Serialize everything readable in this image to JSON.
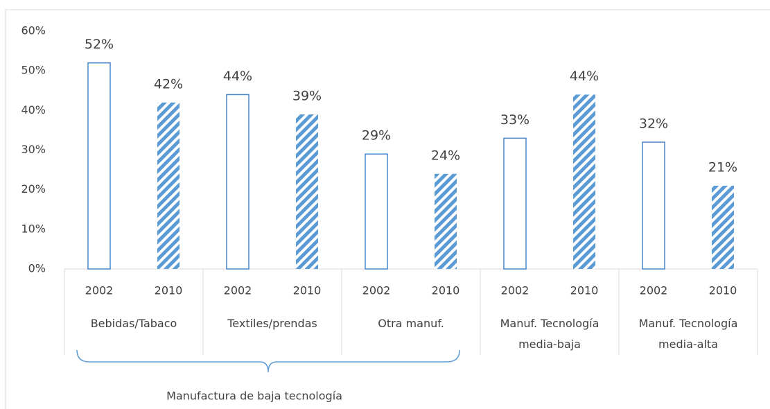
{
  "chart_data": {
    "type": "bar",
    "categories": [
      "Bebidas/Tabaco",
      "Textiles/prendas",
      "Otra manuf.",
      "Manuf. Tecnología media-baja",
      "Manuf. Tecnología media-alta"
    ],
    "series": [
      {
        "name": "2002",
        "color": "#4a86c8",
        "values": [
          52,
          44,
          29,
          33,
          32
        ],
        "value_labels": [
          "52%",
          "44%",
          "29%",
          "33%",
          "32%"
        ]
      },
      {
        "name": "2010",
        "color": "#5b9bd5",
        "values": [
          42,
          39,
          24,
          44,
          21
        ],
        "value_labels": [
          "42%",
          "39%",
          "24%",
          "44%",
          "21%"
        ]
      }
    ],
    "ylim": [
      0,
      60
    ],
    "yticks": [
      {
        "value": 0,
        "label": "0%"
      },
      {
        "value": 10,
        "label": "10%"
      },
      {
        "value": 20,
        "label": "20%"
      },
      {
        "value": 30,
        "label": "30%"
      },
      {
        "value": 40,
        "label": "40%"
      },
      {
        "value": 50,
        "label": "50%"
      },
      {
        "value": 60,
        "label": "60%"
      }
    ],
    "grid": false,
    "annotations": [
      {
        "text": "Manufactura de baja tecnología"
      }
    ]
  }
}
